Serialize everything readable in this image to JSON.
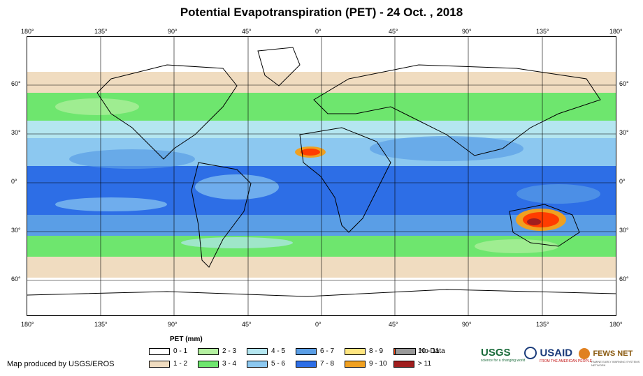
{
  "title": "Potential Evapotranspiration (PET) - 24 Oct. , 2018",
  "lon_labels": [
    "180°",
    "135°",
    "90°",
    "45°",
    "0°",
    "45°",
    "90°",
    "135°",
    "180°"
  ],
  "lat_labels": [
    "60°",
    "30°",
    "0°",
    "30°",
    "60°"
  ],
  "legend": {
    "title": "PET (mm)",
    "items": [
      {
        "label": "0 - 1",
        "color": "#ffffff"
      },
      {
        "label": "1 - 2",
        "color": "#f0dcc0"
      },
      {
        "label": "2 - 3",
        "color": "#b4f0a0"
      },
      {
        "label": "3 - 4",
        "color": "#6ee66e"
      },
      {
        "label": "4 - 5",
        "color": "#b4e6f0"
      },
      {
        "label": "5 - 6",
        "color": "#8cc8f0"
      },
      {
        "label": "6 - 7",
        "color": "#5a9ee6"
      },
      {
        "label": "7 - 8",
        "color": "#2d6ee6"
      },
      {
        "label": "8 - 9",
        "color": "#ffe680"
      },
      {
        "label": "9 - 10",
        "color": "#f0a020"
      },
      {
        "label": "10 - 11",
        "color": "#ff3c00"
      },
      {
        "label": "> 11",
        "color": "#a01e1e"
      },
      {
        "label": "No Data",
        "color": "#999999"
      }
    ]
  },
  "credit": "Map produced by USGS/EROS",
  "logos": {
    "usgs": "USGS",
    "usgs_tagline": "science for a changing world",
    "usaid": "USAID",
    "usaid_tagline": "FROM THE AMERICAN PEOPLE",
    "fews": "FEWS NET",
    "fews_tagline": "FAMINE EARLY WARNING SYSTEMS NETWORK"
  }
}
